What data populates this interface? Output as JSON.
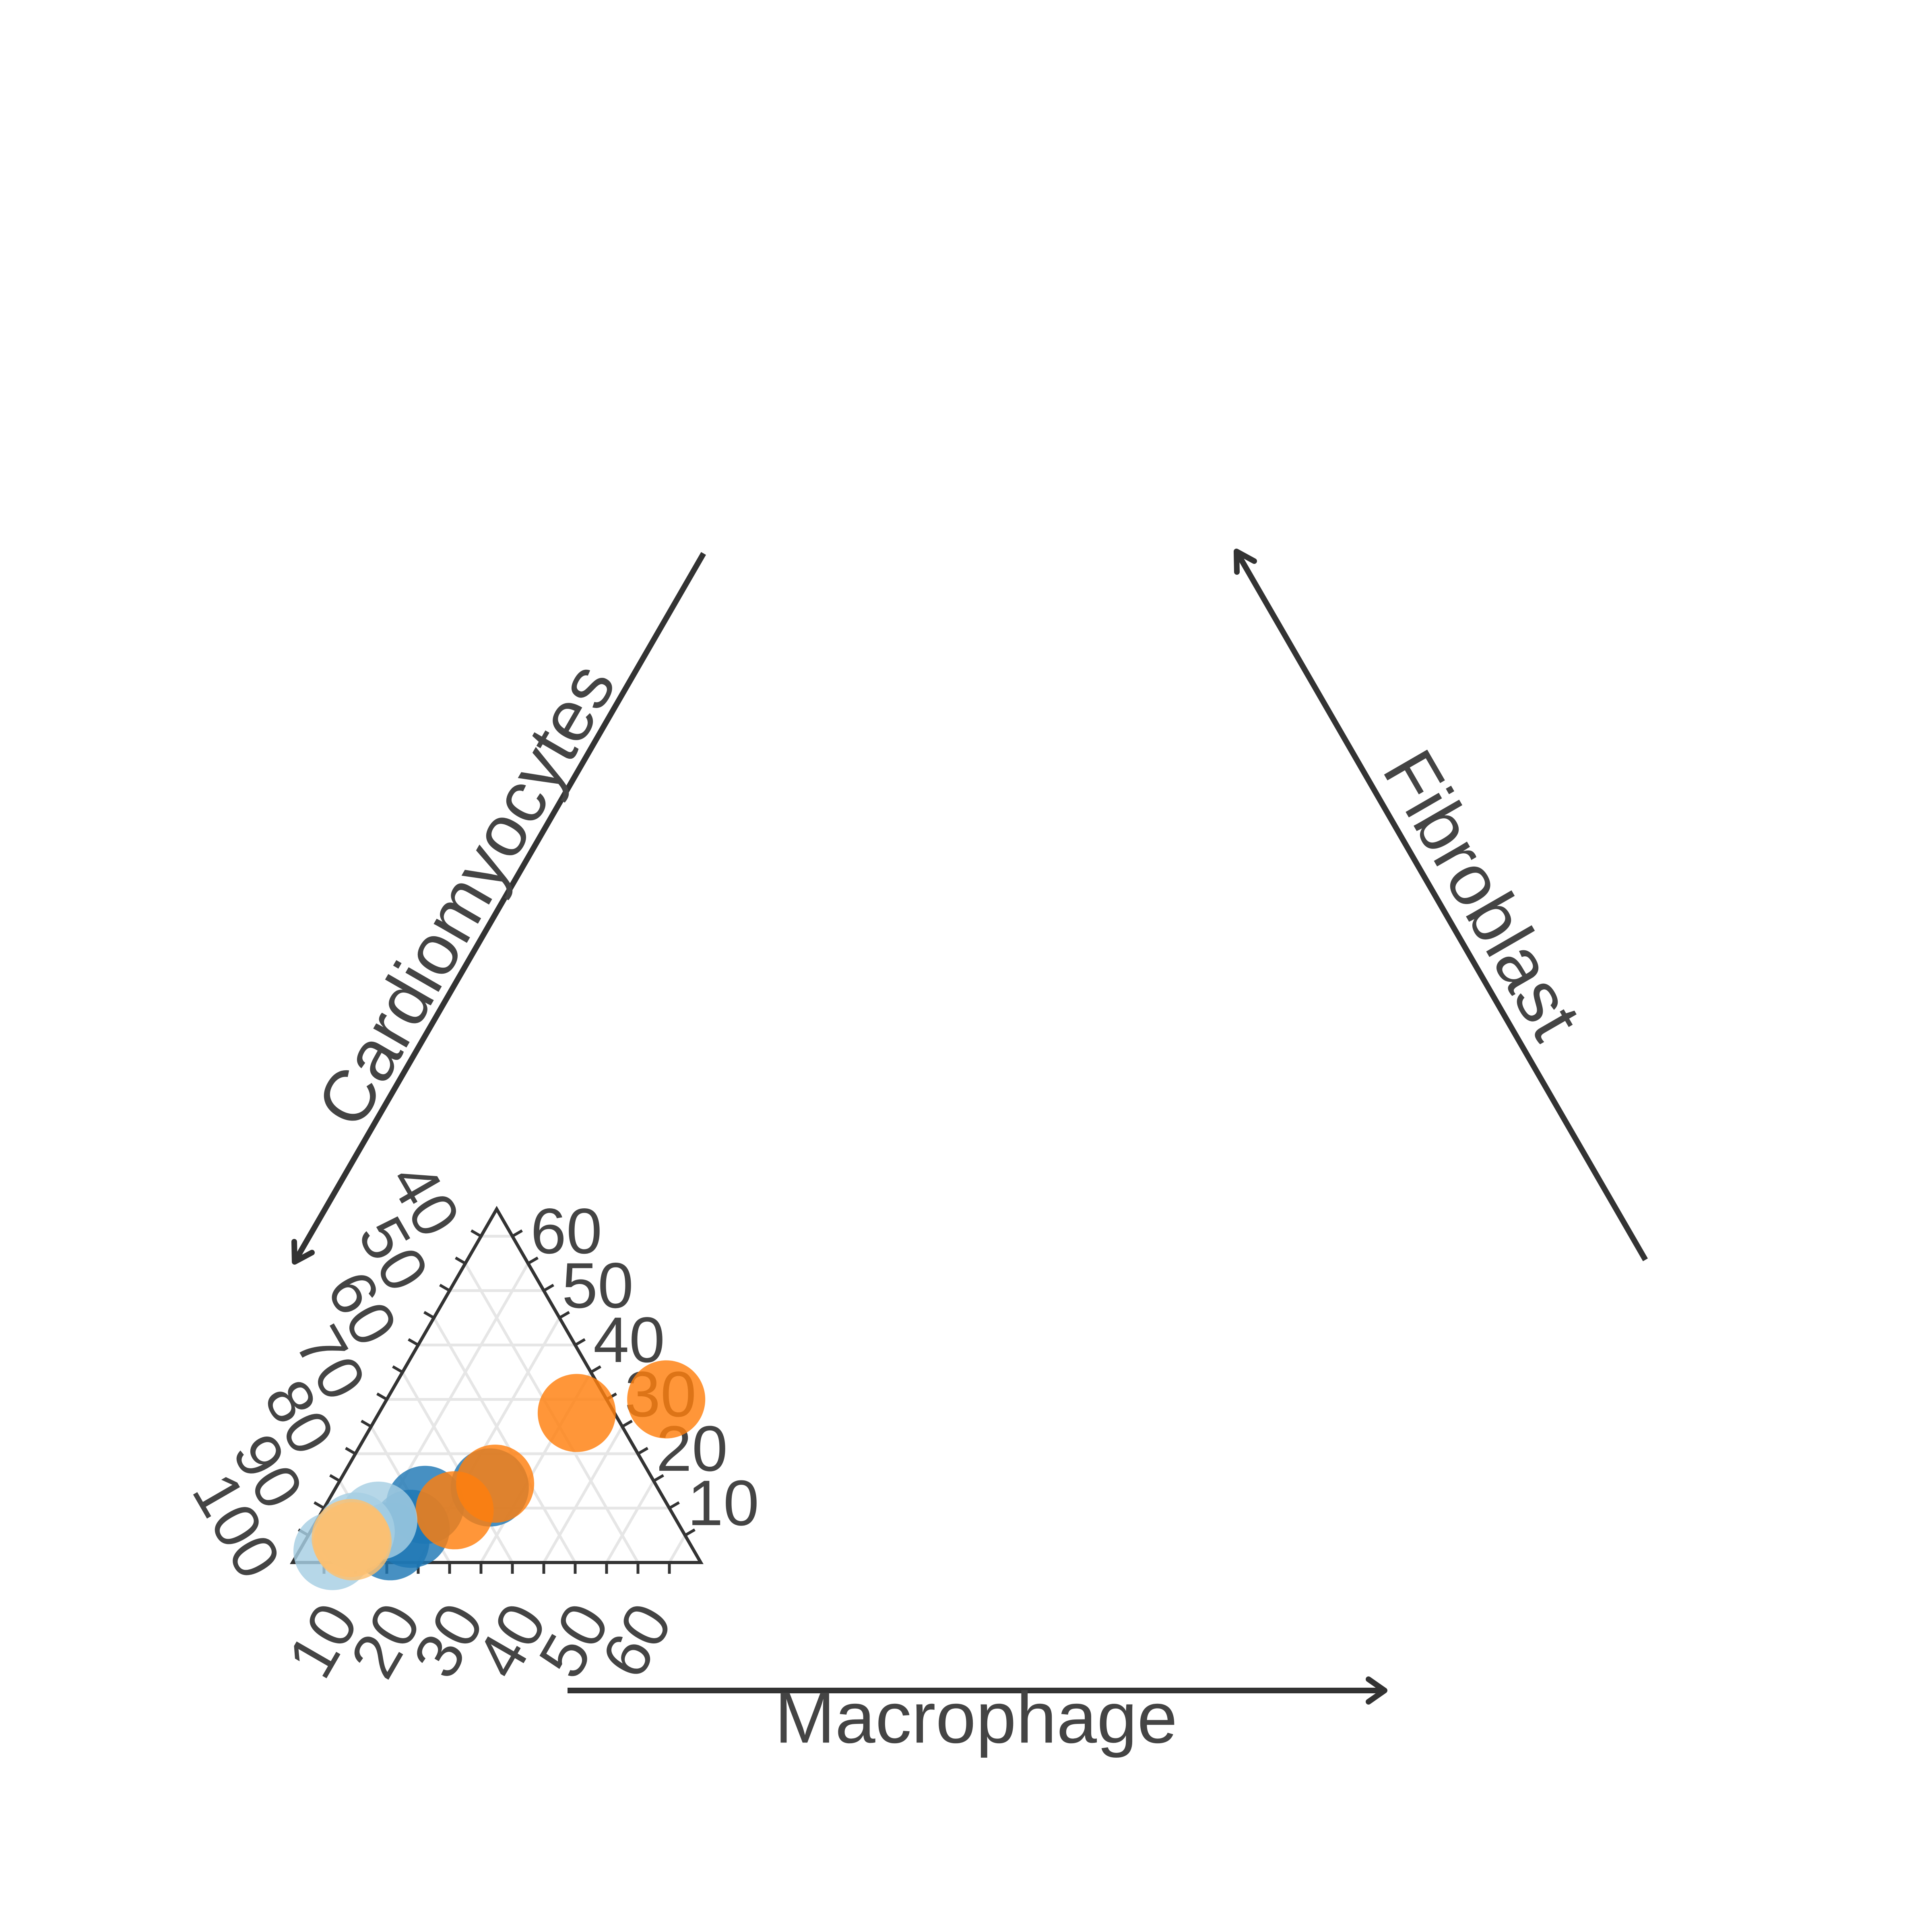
{
  "chart_data": {
    "type": "ternary-scatter",
    "axes": {
      "bottom": {
        "label": "Macrophage",
        "ticks": [
          10,
          20,
          30,
          40,
          50,
          60
        ],
        "range": [
          0,
          65
        ]
      },
      "left": {
        "label": "Cardiomyocytes",
        "ticks": [
          40,
          50,
          60,
          70,
          80,
          90,
          100
        ],
        "range": [
          35,
          100
        ]
      },
      "right": {
        "label": "Fibroblast",
        "ticks": [
          10,
          20,
          30,
          40,
          50,
          60
        ],
        "range": [
          0,
          65
        ]
      }
    },
    "grid": true,
    "legend": "none",
    "series": [
      {
        "color": "#1f77b4",
        "opacity": 0.82,
        "points": [
          {
            "macrophage": 24.5,
            "fibroblast": 13.8
          },
          {
            "macrophage": 15.8,
            "fibroblast": 10.6
          },
          {
            "macrophage": 15.7,
            "fibroblast": 6.2
          },
          {
            "macrophage": 13.6,
            "fibroblast": 3.9
          }
        ]
      },
      {
        "color": "#ff7f0e",
        "opacity": 0.82,
        "points": [
          {
            "macrophage": 44.5,
            "fibroblast": 30.0
          },
          {
            "macrophage": 31.5,
            "fibroblast": 27.5
          },
          {
            "macrophage": 25.0,
            "fibroblast": 14.5
          },
          {
            "macrophage": 21.0,
            "fibroblast": 9.6
          }
        ]
      },
      {
        "color": "#a6cee3",
        "opacity": 0.82,
        "points": [
          {
            "macrophage": 9.8,
            "fibroblast": 7.7
          },
          {
            "macrophage": 7.2,
            "fibroblast": 5.7
          },
          {
            "macrophage": 5.3,
            "fibroblast": 2.1
          }
        ]
      },
      {
        "color": "#fdbf6f",
        "opacity": 0.82,
        "points": [
          {
            "macrophage": 7.0,
            "fibroblast": 4.5
          },
          {
            "macrophage": 7.6,
            "fibroblast": 3.9
          }
        ]
      }
    ]
  }
}
